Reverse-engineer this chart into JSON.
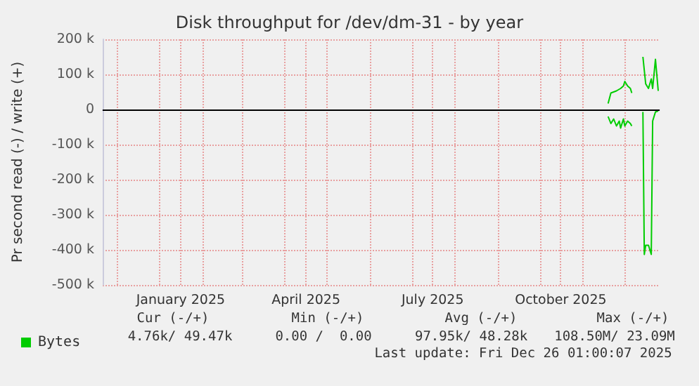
{
  "chart_data": {
    "type": "line",
    "title": "Disk throughput for /dev/dm-31 - by year",
    "ylabel": "Pr second read (-) / write (+)",
    "xlim": [
      "2024-11-21",
      "2025-12-26"
    ],
    "xticks": [
      {
        "value": "2024-12-01",
        "label": null
      },
      {
        "value": "2025-01-01",
        "label": null
      },
      {
        "value": "2025-01-16",
        "label": "January 2025"
      },
      {
        "value": "2025-02-01",
        "label": null
      },
      {
        "value": "2025-03-01",
        "label": null
      },
      {
        "value": "2025-04-01",
        "label": null
      },
      {
        "value": "2025-04-16",
        "label": "April 2025"
      },
      {
        "value": "2025-05-01",
        "label": null
      },
      {
        "value": "2025-06-01",
        "label": null
      },
      {
        "value": "2025-07-01",
        "label": null
      },
      {
        "value": "2025-07-16",
        "label": "July 2025"
      },
      {
        "value": "2025-08-01",
        "label": null
      },
      {
        "value": "2025-09-01",
        "label": null
      },
      {
        "value": "2025-10-01",
        "label": null
      },
      {
        "value": "2025-10-16",
        "label": "October 2025"
      },
      {
        "value": "2025-11-01",
        "label": null
      },
      {
        "value": "2025-12-01",
        "label": null
      }
    ],
    "ylim": [
      -500000,
      200000
    ],
    "yticks": [
      {
        "value": -500000,
        "label": "-500 k"
      },
      {
        "value": -400000,
        "label": "-400 k"
      },
      {
        "value": -300000,
        "label": "-300 k"
      },
      {
        "value": -200000,
        "label": "-200 k"
      },
      {
        "value": -100000,
        "label": "-100 k"
      },
      {
        "value": 0,
        "label": "0"
      },
      {
        "value": 100000,
        "label": "100 k"
      },
      {
        "value": 200000,
        "label": "200 k"
      }
    ],
    "series": [
      {
        "name": "Bytes",
        "color": "#00cc00",
        "x": [
          "2025-11-19",
          "2025-11-21",
          "2025-11-25",
          "2025-11-28",
          "2025-11-30",
          "2025-12-01",
          "2025-12-03",
          "2025-12-05",
          "2025-12-06",
          "2025-12-10",
          "2025-12-14",
          "2025-12-16",
          "2025-12-18",
          "2025-12-20",
          "2025-12-21",
          "2025-12-23",
          "2025-12-25"
        ],
        "values": [
          17000,
          47000,
          53000,
          60000,
          67000,
          80000,
          67000,
          60000,
          47000,
          null,
          150000,
          73000,
          60000,
          87000,
          60000,
          143000,
          53000
        ]
      },
      {
        "color": "#00cc00",
        "x": [
          "2025-11-19",
          "2025-11-21",
          "2025-11-23",
          "2025-11-25",
          "2025-11-27",
          "2025-11-28",
          "2025-11-30",
          "2025-12-01",
          "2025-12-03",
          "2025-12-05",
          "2025-12-06",
          "2025-12-10",
          "2025-12-14",
          "2025-12-15",
          "2025-12-16",
          "2025-12-18",
          "2025-12-20",
          "2025-12-21",
          "2025-12-23",
          "2025-12-25"
        ],
        "values": [
          -20000,
          -40000,
          -27000,
          -47000,
          -33000,
          -53000,
          -27000,
          -47000,
          -33000,
          -40000,
          -47000,
          null,
          -7000,
          -413000,
          -387000,
          -387000,
          -413000,
          -33000,
          -7000,
          -4000
        ]
      }
    ],
    "ref_lines": [
      {
        "axis": "y",
        "value": 0,
        "color": "#000000"
      }
    ],
    "grid": true,
    "legend": "bottom left",
    "annotations": [
      "Cur (-/+)",
      "Min (-/+)",
      "Avg (-/+)",
      "Max (-/+)",
      "4.76k/ 49.47k",
      "0.00 /  0.00",
      "97.95k/ 48.28k",
      "108.50M/ 23.09M",
      "Last update: Fri Dec 26 01:00:07 2025"
    ]
  }
}
